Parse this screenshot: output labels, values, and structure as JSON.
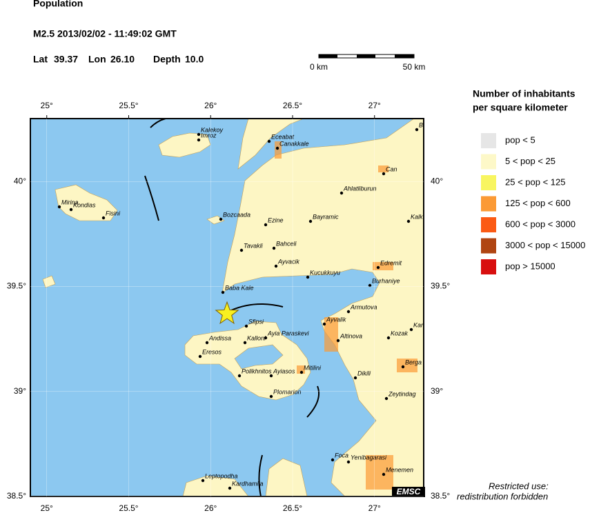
{
  "header": {
    "title": "Population",
    "event": "M2.5  2013/02/02 - 11:49:02 GMT",
    "lat_label": "Lat",
    "lat": 39.37,
    "lon_label": "Lon",
    "lon": {
      "value": 26.1,
      "label": "26.10"
    },
    "depth_label": "Depth",
    "depth": {
      "value": 10,
      "label": "10.0"
    }
  },
  "scale_bar": {
    "start": "0 km",
    "end": "50 km"
  },
  "map": {
    "xlim": [
      24.9,
      27.3
    ],
    "ylim": [
      38.5,
      40.3
    ],
    "xticks": [
      {
        "value": 25,
        "label": "25°"
      },
      {
        "value": 25.5,
        "label": "25.5°"
      },
      {
        "value": 26,
        "label": "26°"
      },
      {
        "value": 26.5,
        "label": "26.5°"
      },
      {
        "value": 27,
        "label": "27°"
      }
    ],
    "yticks": [
      {
        "value": 38.5,
        "label": "38.5°"
      },
      {
        "value": 39,
        "label": "39°"
      },
      {
        "value": 39.5,
        "label": "39.5°"
      },
      {
        "value": 40,
        "label": "40°"
      }
    ],
    "towns": [
      "Kalekoy",
      "Imroz",
      "Eceabat",
      "Canakkale",
      "Can",
      "Ahlatliburun",
      "Mirina",
      "Kondias",
      "Fisini",
      "Bozcaada",
      "Ezine",
      "Bayramic",
      "Kalk",
      "Tavakli",
      "Bahceli",
      "Ayvacik",
      "Edremit",
      "Kucukkuyu",
      "Baba Kale",
      "Burhaniye",
      "Armutova",
      "Ayvalik",
      "Sfipsi",
      "Andissa",
      "Ayia Paraskevi",
      "Kalloni",
      "Kozak",
      "Karave",
      "Altinova",
      "Eresos",
      "Berga",
      "Dikili",
      "Polikhnitos",
      "Ayiasos",
      "Mitilini",
      "Zeytindag",
      "Plomarion",
      "Foca",
      "Yenibagarasi",
      "Menemen",
      "Leptopodha",
      "Kardhamila",
      "Bi"
    ],
    "brand": "EMSC"
  },
  "legend": {
    "title_lines": [
      "Number of inhabitants",
      "per square kilometer"
    ],
    "items": [
      {
        "label": "pop < 5",
        "color": "#e6e6e6"
      },
      {
        "label": "5 < pop < 25",
        "color": "#fdf8c8"
      },
      {
        "label": "25 < pop < 125",
        "color": "#f8f560"
      },
      {
        "label": "125 < pop < 600",
        "color": "#fb9a35"
      },
      {
        "label": "600 < pop < 3000",
        "color": "#fb5a14"
      },
      {
        "label": "3000 < pop < 15000",
        "color": "#b04512"
      },
      {
        "label": "pop > 15000",
        "color": "#d80f0f"
      }
    ]
  },
  "notice": [
    "Restricted use:",
    "redistribution forbidden"
  ]
}
